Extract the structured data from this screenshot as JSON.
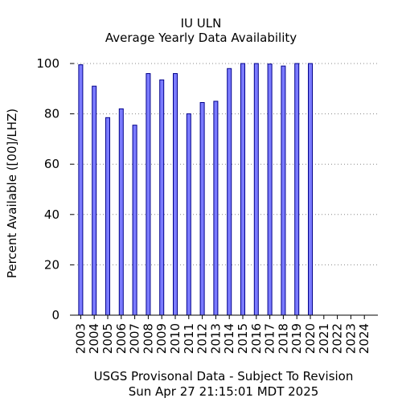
{
  "title": "IU ULN",
  "subtitle": "Average Yearly Data Availability",
  "footer_line1": "USGS Provisonal Data - Subject To Revision",
  "footer_line2": "Sun Apr 27 21:15:01 MDT 2025",
  "chart_data": {
    "type": "bar",
    "title": "IU ULN",
    "subtitle": "Average Yearly Data Availability",
    "xlabel": "",
    "ylabel": "Percent Available ([00]/LHZ)",
    "ylim": [
      0,
      100
    ],
    "yticks": [
      0,
      20,
      40,
      60,
      80,
      100
    ],
    "grid": "horizontal-dotted",
    "bar_color": "#7b7bff",
    "bar_edge_color": "#00008b",
    "categories": [
      "2003",
      "2004",
      "2005",
      "2006",
      "2007",
      "2008",
      "2009",
      "2010",
      "2011",
      "2012",
      "2013",
      "2014",
      "2015",
      "2016",
      "2017",
      "2018",
      "2019",
      "2020",
      "2021",
      "2022",
      "2023",
      "2024"
    ],
    "values": [
      99.5,
      91,
      78.5,
      82,
      75.5,
      96,
      93.5,
      96,
      80,
      84.5,
      85,
      98,
      100,
      100,
      99.8,
      99,
      100,
      100,
      0,
      0,
      0,
      0
    ]
  }
}
